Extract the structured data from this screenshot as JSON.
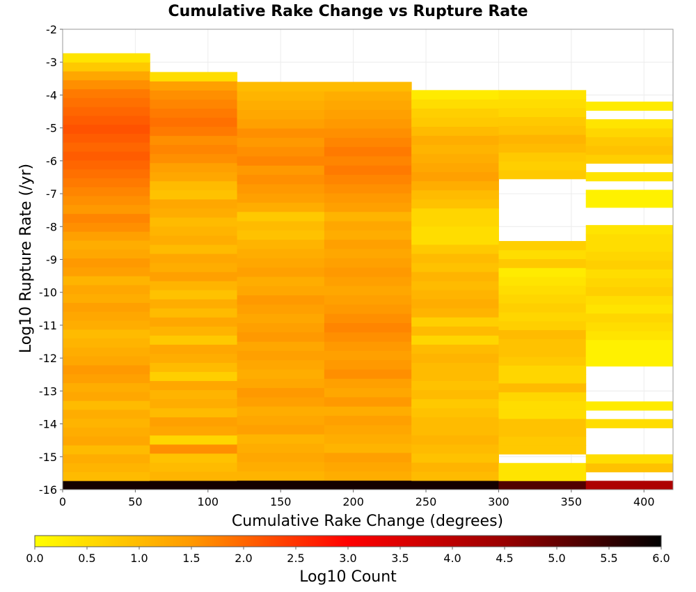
{
  "chart_data": {
    "type": "heatmap",
    "title": "Cumulative Rake Change vs Rupture Rate",
    "xlabel": "Cumulative Rake Change (degrees)",
    "ylabel": "Log10 Rupture Rate (/yr)",
    "xlim": [
      0,
      420
    ],
    "ylim": [
      -16,
      -2
    ],
    "x_ticks": [
      "0",
      "50",
      "100",
      "150",
      "200",
      "250",
      "300",
      "350",
      "400"
    ],
    "x_tick_values": [
      0,
      50,
      100,
      150,
      200,
      250,
      300,
      350,
      400
    ],
    "y_ticks": [
      "-2",
      "-3",
      "-4",
      "-5",
      "-6",
      "-7",
      "-8",
      "-9",
      "-10",
      "-11",
      "-12",
      "-13",
      "-14",
      "-15",
      "-16"
    ],
    "y_tick_values": [
      -2,
      -3,
      -4,
      -5,
      -6,
      -7,
      -8,
      -9,
      -10,
      -11,
      -12,
      -13,
      -14,
      -15,
      -16
    ],
    "x_bin_edges": [
      0,
      60,
      120,
      180,
      240,
      300,
      360,
      420
    ],
    "y_bin_width": 0.28,
    "colorbar": {
      "label": "Log10 Count",
      "min": 0.0,
      "max": 6.0,
      "ticks": [
        "0.0",
        "0.5",
        "1.0",
        "1.5",
        "2.0",
        "2.5",
        "3.0",
        "3.5",
        "4.0",
        "4.5",
        "5.0",
        "5.5",
        "6.0"
      ],
      "tick_values": [
        0,
        0.5,
        1,
        1.5,
        2,
        2.5,
        3,
        3.5,
        4,
        4.5,
        5,
        5.5,
        6
      ],
      "colormap": [
        "#ffff00",
        "#ff9900",
        "#ff0000",
        "#990000",
        "#000000"
      ]
    },
    "columns": [
      {
        "x_start": 0,
        "x_end": 60,
        "y_start": -16,
        "y_end": -2.73,
        "log10_counts_bottom_to_top": [
          5.8,
          1.0,
          1.1,
          1.2,
          1.0,
          1.3,
          1.2,
          1.1,
          1.2,
          1.0,
          1.3,
          1.2,
          1.4,
          1.5,
          1.3,
          1.2,
          1.1,
          1.0,
          1.2,
          1.3,
          1.4,
          1.2,
          1.3,
          1.1,
          1.4,
          1.5,
          1.3,
          1.2,
          1.4,
          1.6,
          1.7,
          1.5,
          1.6,
          1.7,
          1.8,
          1.9,
          2.0,
          2.1,
          2.0,
          2.1,
          2.2,
          2.1,
          2.0,
          1.9,
          1.8,
          1.6,
          1.3,
          0.8,
          0.4
        ]
      },
      {
        "x_start": 60,
        "x_end": 120,
        "y_start": -16,
        "y_end": -3.3,
        "log10_counts_bottom_to_top": [
          5.8,
          1.1,
          1.0,
          0.9,
          1.6,
          0.6,
          1.3,
          1.4,
          1.0,
          1.2,
          1.1,
          1.3,
          0.7,
          1.0,
          1.2,
          1.3,
          0.8,
          1.1,
          1.3,
          1.0,
          1.2,
          0.9,
          1.1,
          1.4,
          1.2,
          1.3,
          1.0,
          1.2,
          1.1,
          1.0,
          1.2,
          1.3,
          0.9,
          1.0,
          1.3,
          1.4,
          1.6,
          1.7,
          1.6,
          1.8,
          1.9,
          1.8,
          1.7,
          1.6,
          1.4,
          0.5
        ]
      },
      {
        "x_start": 120,
        "x_end": 180,
        "y_start": -16,
        "y_end": -3.6,
        "log10_counts_bottom_to_top": [
          5.8,
          1.1,
          1.2,
          1.3,
          1.2,
          1.1,
          1.4,
          1.3,
          1.2,
          1.4,
          1.5,
          1.3,
          1.2,
          1.3,
          1.4,
          1.3,
          1.5,
          1.4,
          1.3,
          1.4,
          1.5,
          1.3,
          1.2,
          1.4,
          1.3,
          1.2,
          1.1,
          0.9,
          1.0,
          0.8,
          1.2,
          1.4,
          1.5,
          1.6,
          1.5,
          1.7,
          1.6,
          1.5,
          1.6,
          1.4,
          1.3,
          1.2,
          1.1,
          1.0
        ]
      },
      {
        "x_start": 180,
        "x_end": 240,
        "y_start": -16,
        "y_end": -3.6,
        "log10_counts_bottom_to_top": [
          5.8,
          1.2,
          1.3,
          1.4,
          1.1,
          1.2,
          1.3,
          1.4,
          1.2,
          1.5,
          1.3,
          1.4,
          1.6,
          1.5,
          1.4,
          1.5,
          1.6,
          1.7,
          1.6,
          1.5,
          1.4,
          1.3,
          1.4,
          1.5,
          1.4,
          1.3,
          1.4,
          1.2,
          1.3,
          1.1,
          1.4,
          1.5,
          1.6,
          1.7,
          1.8,
          1.7,
          1.8,
          1.7,
          1.6,
          1.5,
          1.4,
          1.3,
          1.2,
          1.0
        ]
      },
      {
        "x_start": 240,
        "x_end": 300,
        "y_start": -16,
        "y_end": -3.85,
        "log10_counts_bottom_to_top": [
          5.8,
          1.0,
          1.1,
          0.9,
          1.0,
          1.1,
          1.0,
          1.0,
          0.9,
          0.8,
          1.0,
          0.9,
          1.0,
          1.0,
          1.1,
          1.0,
          0.6,
          1.0,
          0.7,
          1.1,
          1.2,
          1.1,
          1.0,
          1.1,
          0.9,
          1.0,
          0.8,
          0.5,
          0.5,
          0.6,
          0.6,
          0.9,
          1.0,
          1.2,
          1.4,
          1.3,
          1.2,
          1.1,
          1.2,
          1.0,
          0.8,
          0.7,
          0.5,
          0.3
        ]
      },
      {
        "x_start": 300,
        "x_end": 360,
        "y_start": -16,
        "y_end": -3.85,
        "log10_counts_bottom_to_top": [
          5.2,
          0.4,
          0.4,
          null,
          0.8,
          0.8,
          0.9,
          0.9,
          0.5,
          0.5,
          0.6,
          1.0,
          0.6,
          0.6,
          0.8,
          0.9,
          0.9,
          1.0,
          0.7,
          0.6,
          0.7,
          0.6,
          0.5,
          0.4,
          0.3,
          0.8,
          0.5,
          0.7,
          null,
          null,
          null,
          null,
          null,
          null,
          null,
          0.8,
          0.7,
          0.8,
          1.0,
          1.1,
          0.9,
          0.8,
          0.6,
          0.5,
          0.4
        ]
      },
      {
        "x_start": 360,
        "x_end": 420,
        "y_start": -16,
        "y_end": -4.2,
        "log10_counts_bottom_to_top": [
          4.2,
          null,
          0.9,
          0.5,
          null,
          null,
          null,
          0.5,
          null,
          0.3,
          null,
          null,
          null,
          null,
          0.2,
          0.2,
          0.2,
          0.4,
          0.5,
          0.6,
          0.4,
          0.5,
          0.7,
          0.6,
          0.5,
          0.7,
          0.6,
          0.5,
          0.5,
          0.4,
          null,
          null,
          0.2,
          0.2,
          null,
          0.4,
          null,
          0.7,
          0.9,
          0.8,
          0.6,
          0.4,
          null,
          0.3
        ]
      }
    ]
  }
}
